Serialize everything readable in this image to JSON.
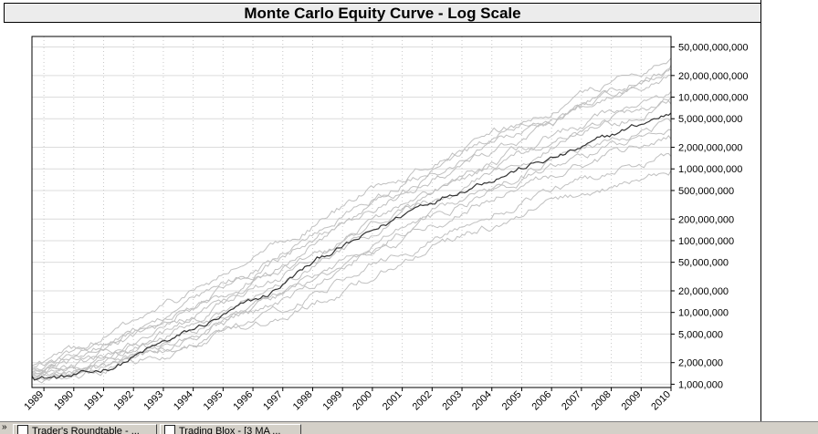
{
  "taskbar": {
    "items": [
      {
        "label": "Trader's Roundtable - ..."
      },
      {
        "label": "Trading Blox - [3 MA ..."
      }
    ]
  },
  "chart_data": {
    "type": "line",
    "title": "Monte Carlo Equity Curve - Log Scale",
    "xlabel": "",
    "ylabel": "",
    "y_scale": "log",
    "ylim": [
      900000,
      70000000000
    ],
    "xlim": [
      1988.6,
      2010.0
    ],
    "grid": true,
    "y_ticks": [
      1000000,
      2000000,
      5000000,
      10000000,
      20000000,
      50000000,
      100000000,
      200000000,
      500000000,
      1000000000,
      2000000000,
      5000000000,
      10000000000,
      20000000000,
      50000000000
    ],
    "y_tick_labels": [
      "1,000,000",
      "2,000,000",
      "5,000,000",
      "10,000,000",
      "20,000,000",
      "50,000,000",
      "100,000,000",
      "200,000,000",
      "500,000,000",
      "1,000,000,000",
      "2,000,000,000",
      "5,000,000,000",
      "10,000,000,000",
      "20,000,000,000",
      "50,000,000,000"
    ],
    "x_ticks": [
      1989,
      1990,
      1991,
      1992,
      1993,
      1994,
      1995,
      1996,
      1997,
      1998,
      1999,
      2000,
      2001,
      2002,
      2003,
      2004,
      2005,
      2006,
      2007,
      2008,
      2009,
      2010
    ],
    "x_tick_labels": [
      "1989",
      "1990",
      "1991",
      "1992",
      "1993",
      "1994",
      "1995",
      "1996",
      "1997",
      "1998",
      "1999",
      "2000",
      "2001",
      "2002",
      "2003",
      "2004",
      "2005",
      "2006",
      "2007",
      "2008",
      "2009",
      "2010"
    ],
    "highlight_color": "#333333",
    "simulation_color": "#c0c0c0",
    "series": [
      {
        "role": "highlight",
        "x": [
          1988.6,
          1989.5,
          1990.5,
          1991.5,
          1992.5,
          1993.5,
          1994.5,
          1995.5,
          1996.5,
          1997.5,
          1998.5,
          1999.5,
          2000.5,
          2001.5,
          2002.5,
          2003.5,
          2004.5,
          2005.5,
          2006.5,
          2007.5,
          2008.5,
          2009.5,
          2010.0
        ],
        "values": [
          1300000,
          1250000,
          1350000,
          1900000,
          3000000,
          4500000,
          7000000,
          11000000,
          17000000,
          35000000,
          65000000,
          100000000,
          170000000,
          300000000,
          450000000,
          650000000,
          900000000,
          1200000000,
          1600000000,
          2300000000,
          3500000000,
          5000000000,
          6000000000
        ]
      },
      {
        "role": "simulation",
        "x": [
          1988.6,
          1990.5,
          1992.5,
          1994.5,
          1996.5,
          1998.5,
          2000.5,
          2002.5,
          2004.5,
          2006.5,
          2008.5,
          2010.0
        ],
        "values": [
          1800000,
          3500000,
          9000000,
          25000000,
          70000000,
          220000000,
          700000000,
          1500000000,
          3500000000,
          8000000000,
          20000000000,
          35000000000
        ]
      },
      {
        "role": "simulation",
        "x": [
          1988.6,
          1990.5,
          1992.5,
          1994.5,
          1996.5,
          1998.5,
          2000.5,
          2002.5,
          2004.5,
          2006.5,
          2008.5,
          2010.0
        ],
        "values": [
          1700000,
          3000000,
          7000000,
          18000000,
          50000000,
          160000000,
          500000000,
          1200000000,
          3000000000,
          7000000000,
          15000000000,
          28000000000
        ]
      },
      {
        "role": "simulation",
        "x": [
          1988.6,
          1990.5,
          1992.5,
          1994.5,
          1996.5,
          1998.5,
          2000.5,
          2002.5,
          2004.5,
          2006.5,
          2008.5,
          2010.0
        ],
        "values": [
          1600000,
          2600000,
          5500000,
          14000000,
          40000000,
          120000000,
          350000000,
          900000000,
          2200000000,
          5000000000,
          11000000000,
          20000000000
        ]
      },
      {
        "role": "simulation",
        "x": [
          1988.6,
          1990.5,
          1992.5,
          1994.5,
          1996.5,
          1998.5,
          2000.5,
          2002.5,
          2004.5,
          2006.5,
          2008.5,
          2010.0
        ],
        "values": [
          1500000,
          2300000,
          4500000,
          11000000,
          30000000,
          80000000,
          250000000,
          600000000,
          1500000000,
          3500000000,
          7000000000,
          12000000000
        ]
      },
      {
        "role": "simulation",
        "x": [
          1988.6,
          1990.5,
          1992.5,
          1994.5,
          1996.5,
          1998.5,
          2000.5,
          2002.5,
          2004.5,
          2006.5,
          2008.5,
          2010.0
        ],
        "values": [
          1400000,
          2000000,
          4000000,
          9000000,
          22000000,
          60000000,
          180000000,
          450000000,
          1100000000,
          2500000000,
          5000000000,
          8000000000
        ]
      },
      {
        "role": "simulation",
        "x": [
          1988.6,
          1990.5,
          1992.5,
          1994.5,
          1996.5,
          1998.5,
          2000.5,
          2002.5,
          2004.5,
          2006.5,
          2008.5,
          2010.0
        ],
        "values": [
          1300000,
          1800000,
          3200000,
          7000000,
          16000000,
          40000000,
          120000000,
          300000000,
          700000000,
          1600000000,
          3000000000,
          4500000000
        ]
      },
      {
        "role": "simulation",
        "x": [
          1988.6,
          1990.5,
          1992.5,
          1994.5,
          1996.5,
          1998.5,
          2000.5,
          2002.5,
          2004.5,
          2006.5,
          2008.5,
          2010.0
        ],
        "values": [
          1250000,
          1600000,
          2800000,
          5500000,
          12000000,
          30000000,
          80000000,
          200000000,
          450000000,
          900000000,
          1800000000,
          2600000000
        ]
      },
      {
        "role": "simulation",
        "x": [
          1988.6,
          1990.5,
          1992.5,
          1994.5,
          1996.5,
          1998.5,
          2000.5,
          2002.5,
          2004.5,
          2006.5,
          2008.5,
          2010.0
        ],
        "values": [
          1200000,
          1500000,
          2500000,
          4500000,
          9000000,
          22000000,
          55000000,
          130000000,
          300000000,
          550000000,
          1000000000,
          1500000000
        ]
      },
      {
        "role": "simulation",
        "x": [
          1988.6,
          1990.5,
          1992.5,
          1994.5,
          1996.5,
          1998.5,
          2000.5,
          2002.5,
          2004.5,
          2006.5,
          2008.5,
          2010.0
        ],
        "values": [
          1200000,
          1400000,
          2200000,
          4000000,
          7500000,
          16000000,
          40000000,
          90000000,
          200000000,
          380000000,
          650000000,
          950000000
        ]
      },
      {
        "role": "simulation",
        "x": [
          1988.6,
          1990.5,
          1992.5,
          1994.5,
          1996.5,
          1998.5,
          2000.5,
          2002.5,
          2004.5,
          2006.5,
          2008.5,
          2010.0
        ],
        "values": [
          1600000,
          2800000,
          6500000,
          16000000,
          45000000,
          140000000,
          420000000,
          1100000000,
          2600000000,
          6000000000,
          13000000000,
          24000000000
        ]
      },
      {
        "role": "simulation",
        "x": [
          1988.6,
          1990.5,
          1992.5,
          1994.5,
          1996.5,
          1998.5,
          2000.5,
          2002.5,
          2004.5,
          2006.5,
          2008.5,
          2010.0
        ],
        "values": [
          1450000,
          2100000,
          4200000,
          10000000,
          26000000,
          70000000,
          210000000,
          520000000,
          1300000000,
          3000000000,
          6000000000,
          10000000000
        ]
      },
      {
        "role": "simulation",
        "x": [
          1988.6,
          1990.5,
          1992.5,
          1994.5,
          1996.5,
          1998.5,
          2000.5,
          2002.5,
          2004.5,
          2006.5,
          2008.5,
          2010.0
        ],
        "values": [
          1350000,
          1700000,
          3000000,
          6000000,
          14000000,
          35000000,
          100000000,
          250000000,
          550000000,
          1200000000,
          2300000000,
          3500000000
        ]
      }
    ]
  }
}
